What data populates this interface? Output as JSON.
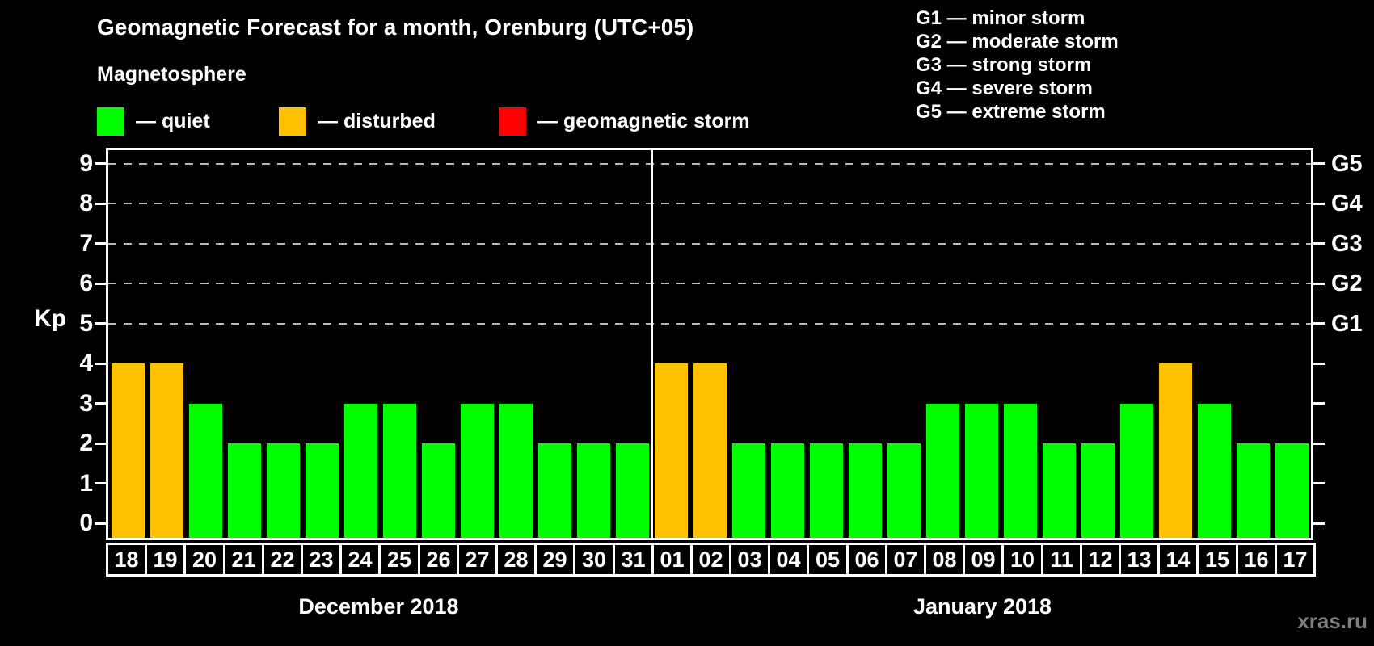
{
  "page": {
    "watermark": "xras.ru"
  },
  "chart_data": {
    "type": "bar",
    "title": "Geomagnetic Forecast for a month, Orenburg (UTC+05)",
    "subtitle": "Magnetosphere",
    "ylabel": "Kp",
    "ylim": [
      0,
      9.6
    ],
    "yticks": [
      0,
      1,
      2,
      3,
      4,
      5,
      6,
      7,
      8,
      9
    ],
    "grid_levels": [
      5,
      6,
      7,
      8,
      9
    ],
    "grid_on": true,
    "right_axis": [
      {
        "level": 5,
        "label": "G1"
      },
      {
        "level": 6,
        "label": "G2"
      },
      {
        "level": 7,
        "label": "G3"
      },
      {
        "level": 8,
        "label": "G4"
      },
      {
        "level": 9,
        "label": "G5"
      }
    ],
    "legend": [
      {
        "name": "quiet",
        "label": "— quiet",
        "color": "#00ff00"
      },
      {
        "name": "disturbed",
        "label": "— disturbed",
        "color": "#ffc000"
      },
      {
        "name": "geomagnetic-storm",
        "label": "— geomagnetic storm",
        "color": "#ff0000"
      }
    ],
    "g_legend": [
      "G1 — minor storm",
      "G2 — moderate storm",
      "G3 — strong storm",
      "G4 — severe storm",
      "G5 — extreme storm"
    ],
    "status_colors": {
      "quiet": "#00ff00",
      "disturbed": "#ffc000",
      "storm": "#ff0000"
    },
    "groups": [
      {
        "label": "December 2018",
        "categories": [
          "18",
          "19",
          "20",
          "21",
          "22",
          "23",
          "24",
          "25",
          "26",
          "27",
          "28",
          "29",
          "30",
          "31"
        ],
        "values": [
          4,
          4,
          3,
          2,
          2,
          2,
          3,
          3,
          2,
          3,
          3,
          2,
          2,
          2
        ],
        "status": [
          "disturbed",
          "disturbed",
          "quiet",
          "quiet",
          "quiet",
          "quiet",
          "quiet",
          "quiet",
          "quiet",
          "quiet",
          "quiet",
          "quiet",
          "quiet",
          "quiet"
        ]
      },
      {
        "label": "January 2018",
        "categories": [
          "01",
          "02",
          "03",
          "04",
          "05",
          "06",
          "07",
          "08",
          "09",
          "10",
          "11",
          "12",
          "13",
          "14",
          "15",
          "16",
          "17"
        ],
        "values": [
          4,
          4,
          2,
          2,
          2,
          2,
          2,
          3,
          3,
          3,
          2,
          2,
          3,
          4,
          3,
          2,
          2
        ],
        "status": [
          "disturbed",
          "disturbed",
          "quiet",
          "quiet",
          "quiet",
          "quiet",
          "quiet",
          "quiet",
          "quiet",
          "quiet",
          "quiet",
          "quiet",
          "quiet",
          "disturbed",
          "quiet",
          "quiet",
          "quiet"
        ]
      }
    ]
  }
}
